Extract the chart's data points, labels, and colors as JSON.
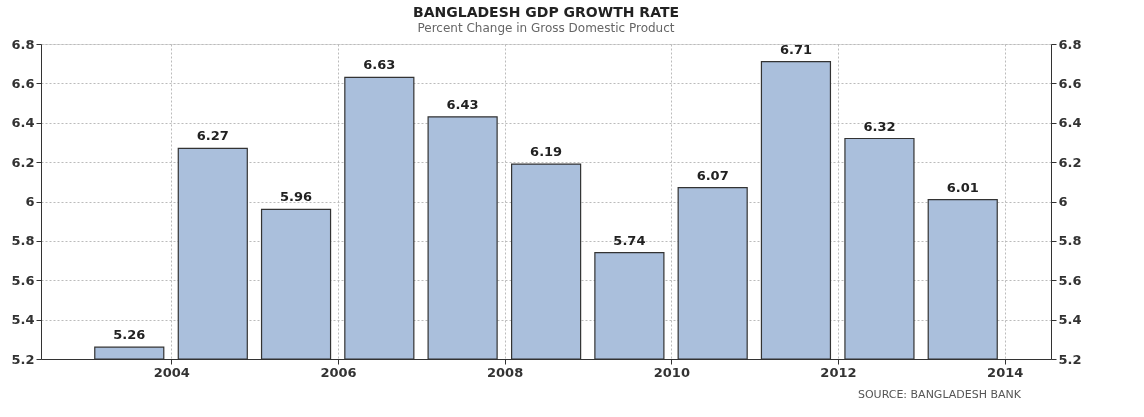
{
  "chart_data": {
    "type": "bar",
    "title": "BANGLADESH GDP GROWTH RATE",
    "subtitle": "Percent Change in Gross Domestic Product",
    "x": [
      "2003-07-01",
      "2004-07-01",
      "2005-07-01",
      "2006-07-01",
      "2007-07-01",
      "2008-07-01",
      "2009-07-01",
      "2010-07-01",
      "2011-07-01",
      "2012-07-01",
      "2013-07-01"
    ],
    "values": [
      5.26,
      6.27,
      5.96,
      6.63,
      6.43,
      6.19,
      5.74,
      6.07,
      6.71,
      6.32,
      6.01
    ],
    "color": "#aabfdc",
    "data_labels": true,
    "xlim": [
      "2002-07-01",
      "2014-07-01"
    ],
    "xticks": [
      "2004",
      "2006",
      "2008",
      "2010",
      "2012",
      "2014"
    ],
    "ylim": [
      5.2,
      6.8
    ],
    "yticks": [
      5.2,
      5.4,
      5.6,
      5.8,
      6,
      6.2,
      6.4,
      6.6,
      6.8
    ],
    "y2lim": [
      5.2,
      6.8
    ],
    "y2ticks": [
      5.2,
      5.4,
      5.6,
      5.8,
      6,
      6.2,
      6.4,
      6.6,
      6.8
    ],
    "grid": true,
    "annotations": [
      "SOURCE: BANGLADESH BANK"
    ]
  }
}
